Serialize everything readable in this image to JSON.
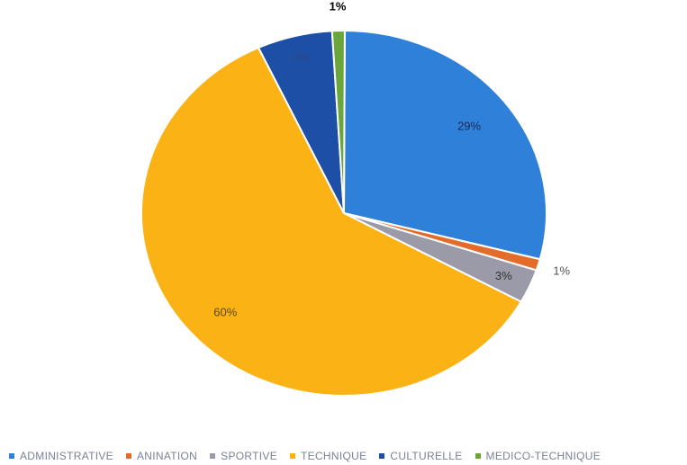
{
  "chart_data": {
    "type": "pie",
    "title": "",
    "series": [
      {
        "name": "ADMINISTRATIVE",
        "value": 29,
        "label": "29%",
        "color": "#2f80d8"
      },
      {
        "name": "ANINATION",
        "value": 1,
        "label": "1%",
        "color": "#e36c2a"
      },
      {
        "name": "SPORTIVE",
        "value": 3,
        "label": "3%",
        "color": "#9a9aa8"
      },
      {
        "name": "TECHNIQUE",
        "value": 60,
        "label": "60%",
        "color": "#fbb215"
      },
      {
        "name": "CULTURELLE",
        "value": 6,
        "label": "6%",
        "color": "#1d4fa6"
      },
      {
        "name": "MEDICO-TECHNIQUE",
        "value": 1,
        "label": "1%",
        "color": "#6aa63a"
      }
    ],
    "legend_position": "bottom"
  }
}
